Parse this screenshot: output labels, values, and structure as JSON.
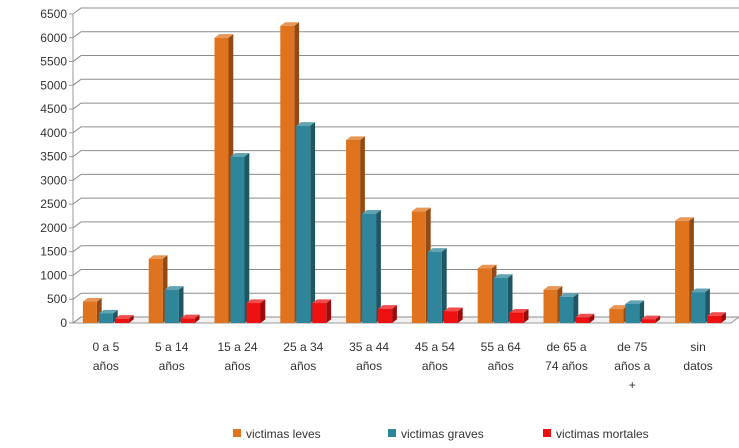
{
  "chart_data": {
    "type": "bar",
    "title": "",
    "xlabel": "",
    "ylabel": "",
    "ylim": [
      0,
      6500
    ],
    "yticks": [
      0,
      500,
      1000,
      1500,
      2000,
      2500,
      3000,
      3500,
      4000,
      4500,
      5000,
      5500,
      6000,
      6500
    ],
    "grid": true,
    "legend_position": "bottom",
    "categories": [
      [
        "0 a 5",
        "años"
      ],
      [
        "5 a 14",
        "años"
      ],
      [
        "15 a 24",
        "años"
      ],
      [
        "25 a 34",
        "años"
      ],
      [
        "35 a 44",
        "años"
      ],
      [
        "45 a 54",
        "años"
      ],
      [
        "55 a 64",
        "años"
      ],
      [
        "de 65 a",
        "74 años"
      ],
      [
        "de 75",
        "años a",
        "+"
      ],
      [
        "sin",
        "datos"
      ]
    ],
    "series": [
      {
        "name": "victimas leves",
        "color": "#e0731e",
        "values": [
          450,
          1350,
          6000,
          6250,
          3850,
          2350,
          1150,
          700,
          300,
          2150
        ]
      },
      {
        "name": "victimas graves",
        "color": "#2f8599",
        "values": [
          200,
          700,
          3500,
          4150,
          2300,
          1500,
          950,
          550,
          400,
          650
        ]
      },
      {
        "name": "victimas mortales",
        "color": "#ee1111",
        "values": [
          90,
          100,
          420,
          420,
          300,
          250,
          220,
          120,
          80,
          150
        ]
      }
    ]
  }
}
